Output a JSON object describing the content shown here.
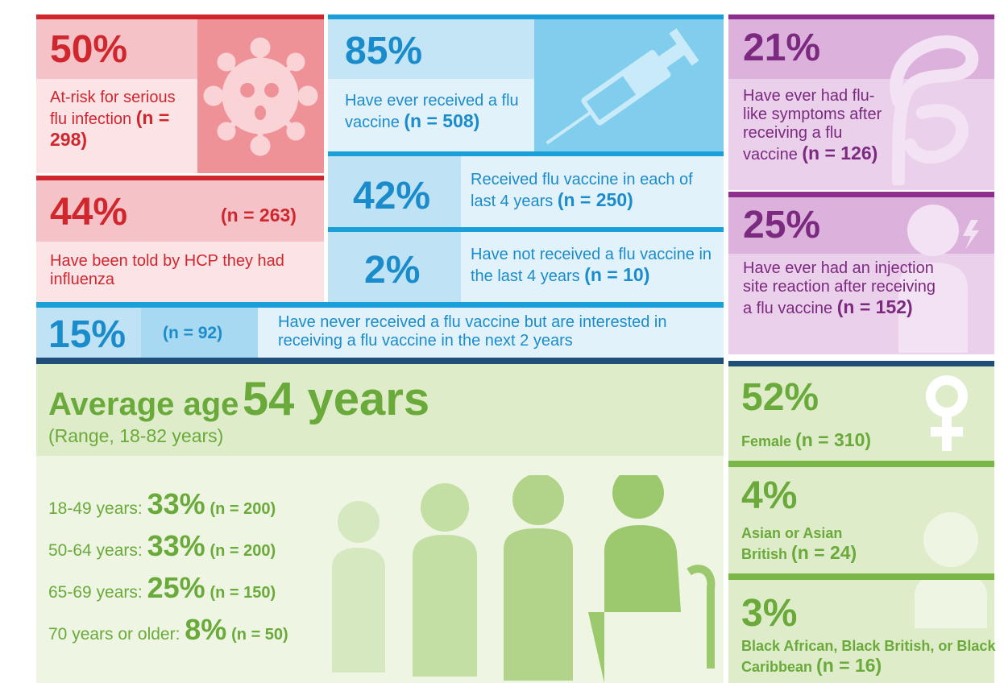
{
  "at_risk": {
    "percent": "50%",
    "text": "At-risk for serious flu infection",
    "n": "(n = 298)"
  },
  "told_influenza": {
    "percent": "44%",
    "n": "(n = 263)",
    "text": "Have been told by HCP they had influenza"
  },
  "ever_vaccinated": {
    "percent": "85%",
    "text": "Have ever received a flu vaccine",
    "n": "(n = 508)"
  },
  "each_last_4": {
    "percent": "42%",
    "text": "Received flu vaccine in each of last 4 years",
    "n": "(n = 250)"
  },
  "none_last_4": {
    "percent": "2%",
    "text": "Have not received a flu vaccine in the last 4 years",
    "n": "(n = 10)"
  },
  "never_interested": {
    "percent": "15%",
    "n": "(n = 92)",
    "text": "Have never received a flu vaccine but are interested in receiving a flu vaccine in the next 2 years"
  },
  "flu_symptoms": {
    "percent": "21%",
    "text": "Have ever had flu-like symptoms after receiving a flu vaccine",
    "n": "(n = 126)"
  },
  "injection_reaction": {
    "percent": "25%",
    "text": "Have ever had an injection site reaction after receiving a flu vaccine",
    "n": "(n = 152)"
  },
  "age": {
    "label": "Average age",
    "value": "54 years",
    "range": "(Range, 18-82 years)",
    "groups": [
      {
        "label": "18-49 years: ",
        "percent": "33%",
        "n": "(n = 200)"
      },
      {
        "label": "50-64 years: ",
        "percent": "33%",
        "n": "(n = 200)"
      },
      {
        "label": "65-69 years: ",
        "percent": "25%",
        "n": "(n = 150)"
      },
      {
        "label": "70 years or older: ",
        "percent": "8%",
        "n": "(n = 50)"
      }
    ]
  },
  "female": {
    "percent": "52%",
    "text": "Female",
    "n": "(n = 310)"
  },
  "asian": {
    "percent": "4%",
    "text": "Asian or Asian British",
    "n": "(n = 24)"
  },
  "black": {
    "percent": "3%",
    "text": "Black African, Black British, or Black Caribbean",
    "n": "(n = 16)"
  }
}
